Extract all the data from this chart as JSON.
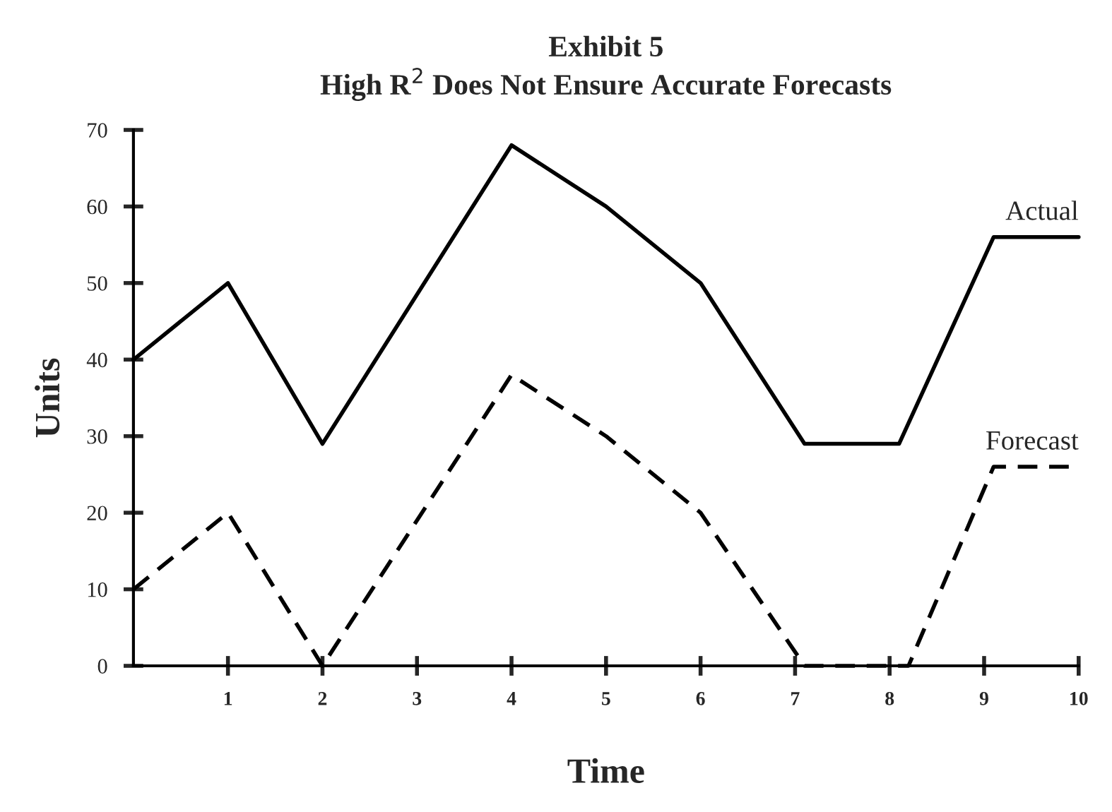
{
  "chart_data": {
    "type": "line",
    "title": "Exhibit 5\nHigh R$^{2}$ Does Not Ensure Accurate Forecasts",
    "xlabel": "Time",
    "ylabel": "Units",
    "xlim": [
      0,
      10
    ],
    "ylim": [
      0,
      70
    ],
    "xticks": [
      1,
      2,
      3,
      4,
      5,
      6,
      7,
      8,
      9,
      10
    ],
    "yticks": [
      0,
      10,
      20,
      30,
      40,
      50,
      60,
      70
    ],
    "grid": false,
    "legend": false,
    "marker": "none",
    "series": [
      {
        "name": "Actual",
        "color": "#000000",
        "line_style": "solid",
        "x": [
          0,
          1,
          2,
          4,
          5,
          6,
          7.1,
          8.1,
          9.1,
          10
        ],
        "values": [
          40,
          50,
          29,
          68,
          60,
          50,
          29,
          29,
          56,
          56
        ]
      },
      {
        "name": "Forecast",
        "color": "#000000",
        "line_style": "dashed",
        "x": [
          0,
          1,
          2,
          4,
          5,
          6,
          7.1,
          8.2,
          9.1,
          10
        ],
        "values": [
          10,
          20,
          0,
          38,
          30,
          20,
          0,
          0,
          26,
          26
        ]
      }
    ]
  }
}
